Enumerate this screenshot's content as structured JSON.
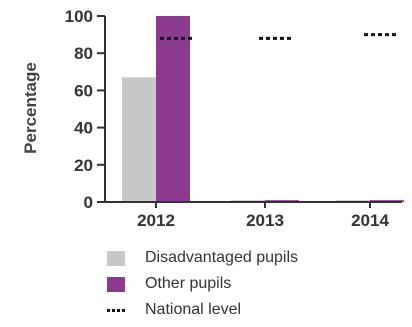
{
  "chart_data": {
    "type": "bar",
    "categories": [
      "2012",
      "2013",
      "2014"
    ],
    "series": [
      {
        "name": "Disadvantaged pupils",
        "values": [
          67,
          1,
          1
        ],
        "color": "#c8c8c8"
      },
      {
        "name": "Other pupils",
        "values": [
          100,
          1,
          1
        ],
        "color": "#8b3a8f"
      }
    ],
    "reference": {
      "name": "National level",
      "values": [
        88,
        88,
        90
      ],
      "style": "dotted",
      "color": "#111111"
    },
    "ylabel": "Percentage",
    "xlabel": "",
    "ylim": [
      0,
      100
    ],
    "yticks": [
      "0",
      "20",
      "40",
      "60",
      "80",
      "100"
    ],
    "grid": false,
    "legend_position": "bottom"
  }
}
